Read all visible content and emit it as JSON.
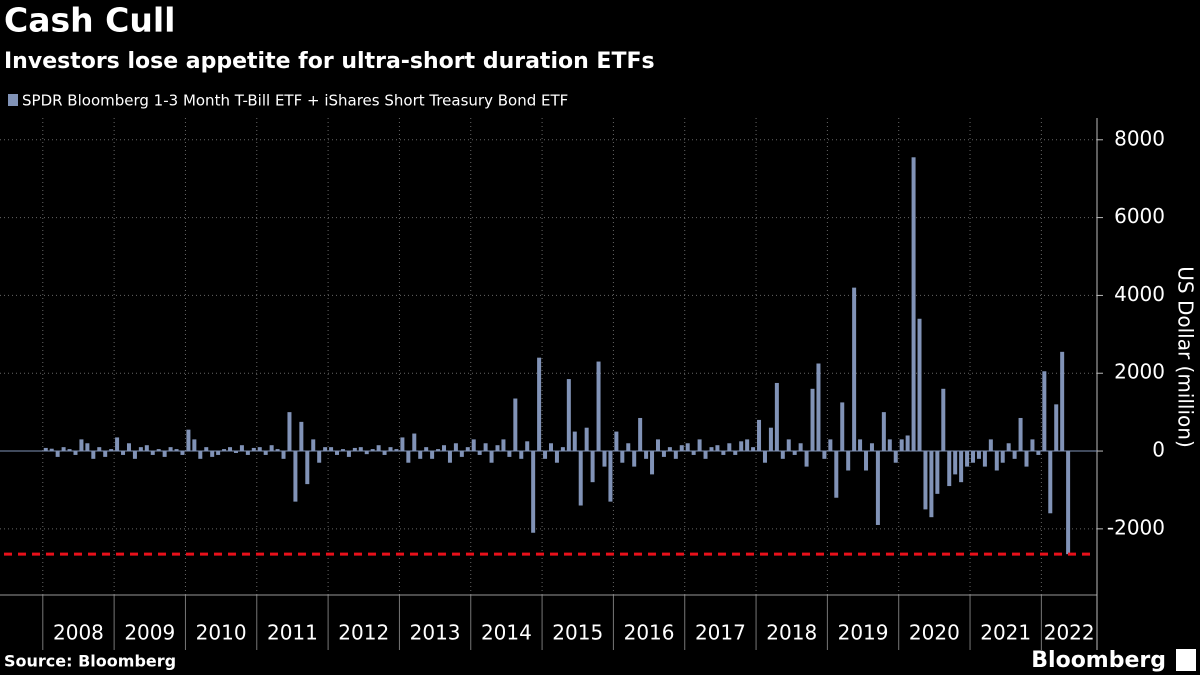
{
  "chart_data": {
    "type": "bar",
    "title": "Cash Cull",
    "subtitle": "Investors lose appetite for ultra-short duration ETFs",
    "series_name": "SPDR Bloomberg 1-3 Month T-Bill ETF + iShares Short Treasury Bond ETF",
    "y_axis_label": "US Dollar (million)",
    "source": "Source: Bloomberg",
    "brand": "Bloomberg",
    "color": "#8193b7",
    "reference_line": {
      "value": -2650,
      "color": "#e8101a"
    },
    "categories": [
      "2008",
      "2009",
      "2010",
      "2011",
      "2012",
      "2013",
      "2014",
      "2015",
      "2016",
      "2017",
      "2018",
      "2019",
      "2020",
      "2021",
      "2022"
    ],
    "values": [
      [
        80,
        60,
        -150,
        100,
        50,
        -100,
        300,
        200,
        -200,
        100,
        -150,
        50
      ],
      [
        350,
        -100,
        200,
        -200,
        100,
        150,
        -100,
        50,
        -150,
        100,
        50,
        -100
      ],
      [
        550,
        300,
        -200,
        100,
        -150,
        -100,
        50,
        100,
        -50,
        150,
        -100,
        80
      ],
      [
        100,
        -100,
        150,
        50,
        -200,
        1000,
        -1300,
        750,
        -850,
        300,
        -300,
        100
      ],
      [
        100,
        -100,
        50,
        -150,
        80,
        100,
        -80,
        50,
        150,
        -100,
        100,
        50
      ],
      [
        350,
        -300,
        450,
        -200,
        100,
        -200,
        50,
        150,
        -300,
        200,
        -150,
        100
      ],
      [
        300,
        -100,
        200,
        -300,
        150,
        300,
        -150,
        1350,
        -200,
        250,
        -2100,
        2400
      ],
      [
        -200,
        200,
        -300,
        100,
        1850,
        500,
        -1400,
        600,
        -800,
        2300,
        -400,
        -1300
      ],
      [
        500,
        -300,
        200,
        -400,
        850,
        -200,
        -600,
        300,
        -150,
        100,
        -200,
        150
      ],
      [
        200,
        -100,
        300,
        -200,
        100,
        150,
        -100,
        200,
        -100,
        250,
        300,
        100
      ],
      [
        800,
        -300,
        600,
        1750,
        -200,
        300,
        -100,
        200,
        -400,
        1600,
        2250,
        -200
      ],
      [
        300,
        -1200,
        1250,
        -500,
        4200,
        300,
        -500,
        200,
        -1900,
        1000,
        300,
        -300
      ],
      [
        300,
        400,
        7550,
        3400,
        -1500,
        -1700,
        -1100,
        1600,
        -900,
        -600,
        -800,
        -400
      ],
      [
        -300,
        -200,
        -400,
        300,
        -500,
        -300,
        200,
        -200,
        850,
        -400,
        300,
        -100
      ],
      [
        2050,
        -1600,
        1200,
        2550,
        -2650
      ]
    ],
    "xlim": [
      2007.4,
      2022.78
    ],
    "xticks": [
      2008,
      2009,
      2010,
      2011,
      2012,
      2013,
      2014,
      2015,
      2016,
      2017,
      2018,
      2019,
      2020,
      2021,
      2022
    ],
    "ylim": [
      -3700,
      8560
    ],
    "yticks": [
      -2000,
      0,
      2000,
      4000,
      6000,
      8000
    ],
    "grid": true
  }
}
